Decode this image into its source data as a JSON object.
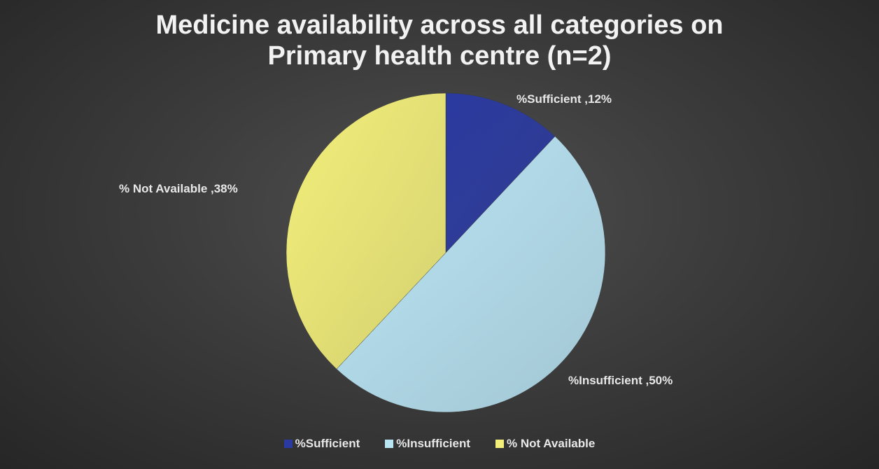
{
  "chart_data": {
    "type": "pie",
    "title_line1": "Medicine availability across all categories on",
    "title_line2": "Primary health centre (n=2)",
    "start_angle_deg": 0,
    "direction": "clockwise",
    "slices": [
      {
        "name": "%Sufficient",
        "value": 12,
        "label": "%Sufficient ,12%",
        "color": "#2b3aa0"
      },
      {
        "name": "%Insufficient",
        "value": 50,
        "label": "%Insufficient ,50%",
        "color": "#b9e4f4"
      },
      {
        "name": "% Not Available",
        "value": 38,
        "label": "% Not Available ,38%",
        "color": "#f3ef7a"
      }
    ],
    "legend_position": "bottom",
    "grid": false
  }
}
